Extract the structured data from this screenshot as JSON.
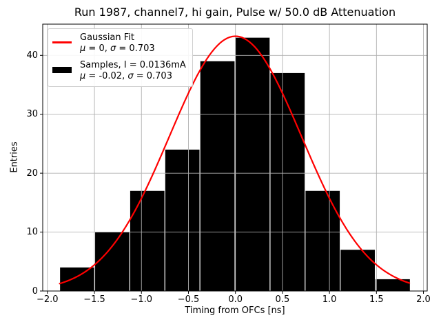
{
  "chart_data": {
    "type": "histogram",
    "title": "Run 1987, channel7, hi gain, Pulse w/ 50.0 dB Attenuation",
    "xlabel": "Timing from OFCs [ns]",
    "ylabel": "Entries",
    "xlim": [
      -2.05,
      2.04
    ],
    "ylim": [
      0,
      45.3
    ],
    "grid": true,
    "grid_color": "#b0b0b0",
    "background_color": "#ffffff",
    "frame_color": "#000000",
    "xticks": {
      "values": [
        -2.0,
        -1.5,
        -1.0,
        -0.5,
        0.0,
        0.5,
        1.0,
        1.5,
        2.0
      ],
      "labels": [
        "−2.0",
        "−1.5",
        "−1.0",
        "−0.5",
        "0.0",
        "0.5",
        "1.0",
        "1.5",
        "2.0"
      ]
    },
    "yticks": {
      "values": [
        0,
        10,
        20,
        30,
        40
      ],
      "labels": [
        "0",
        "10",
        "20",
        "30",
        "40"
      ]
    },
    "histogram": {
      "name": "Samples, I = 0.0136mA",
      "color": "#000000",
      "bin_edges": [
        -1.87,
        -1.497,
        -1.124,
        -0.751,
        -0.378,
        -0.005,
        0.368,
        0.741,
        1.114,
        1.487,
        1.86
      ],
      "counts": [
        4,
        10,
        17,
        24,
        39,
        43,
        37,
        17,
        7,
        2
      ],
      "stats": "μ = -0.02, σ = 0.703"
    },
    "fit_curve": {
      "name": "Gaussian Fit",
      "color": "#ff0000",
      "mu": 0,
      "sigma": 0.703,
      "amplitude": 43.25,
      "x_range": [
        -1.87,
        1.85
      ],
      "stats": "μ = 0, σ = 0.703"
    },
    "legend": {
      "position": "upper left",
      "entries": [
        {
          "swatch": "line",
          "color": "#ff0000",
          "label": "Gaussian Fit",
          "stats": "μ = 0, σ = 0.703"
        },
        {
          "swatch": "rect",
          "color": "#000000",
          "label": "Samples, I = 0.0136mA",
          "stats": "μ = -0.02, σ = 0.703"
        }
      ]
    }
  }
}
